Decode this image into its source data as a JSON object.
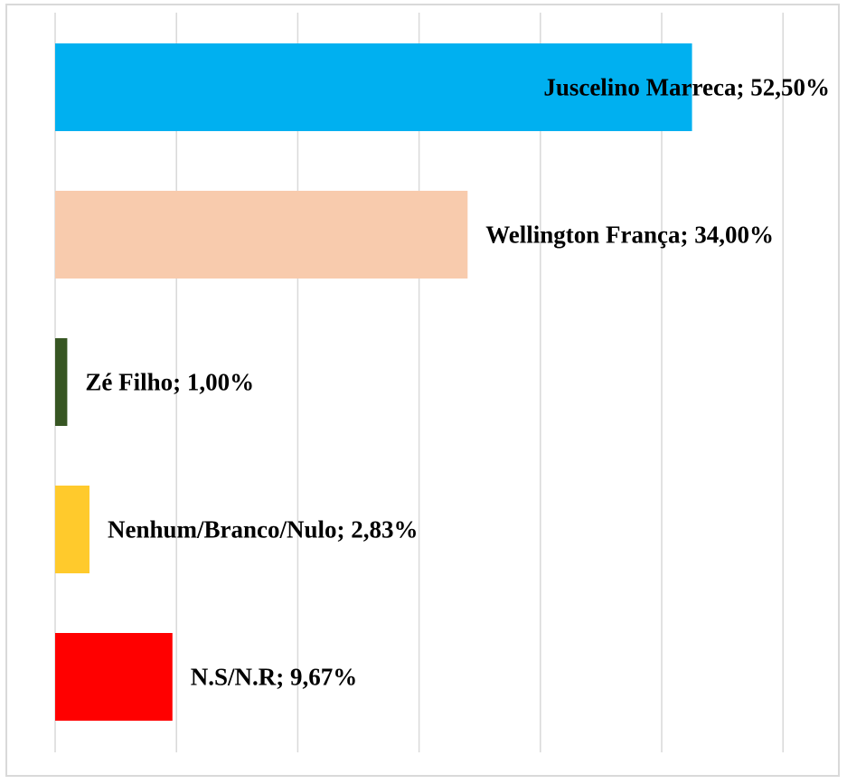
{
  "chart_data": {
    "type": "bar",
    "orientation": "horizontal",
    "categories": [
      "Juscelino Marreca",
      "Wellington França",
      "Zé Filho",
      "Nenhum/Branco/Nulo",
      "N.S/N.R"
    ],
    "values": [
      52.5,
      34.0,
      1.0,
      2.83,
      9.67
    ],
    "data_labels": [
      "Juscelino Marreca; 52,50%",
      "Wellington França; 34,00%",
      "Zé Filho; 1,00%",
      "Nenhum/Branco/Nulo; 2,83%",
      "N.S/N.R; 9,67%"
    ],
    "colors": [
      "#00b0f0",
      "#f8cbad",
      "#375623",
      "#ffca2c",
      "#ff0000"
    ],
    "xlim": [
      0,
      60
    ],
    "grid": true,
    "legend": "none",
    "title": "",
    "xlabel": "",
    "ylabel": ""
  }
}
